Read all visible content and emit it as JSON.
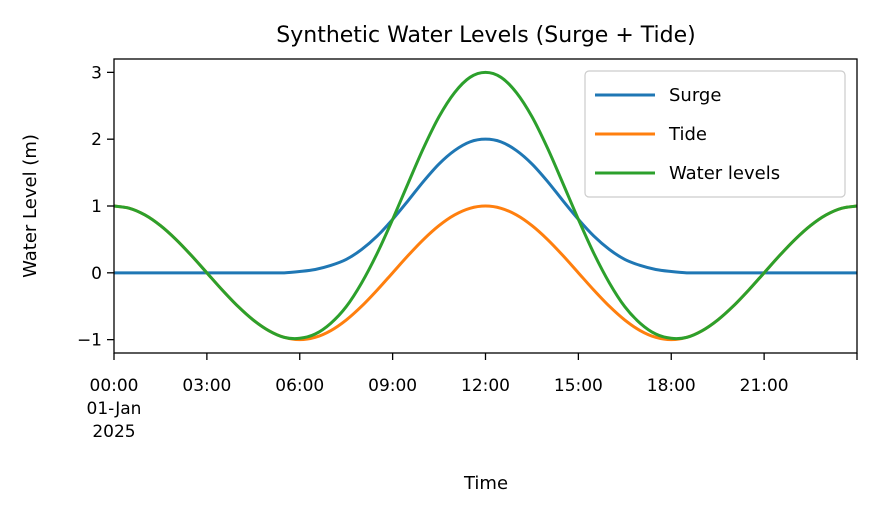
{
  "chart_data": {
    "type": "line",
    "title": "Synthetic Water Levels (Surge + Tide)",
    "xlabel": "Time",
    "ylabel": "Water Level (m)",
    "x_unit": "hours",
    "xlim": [
      0,
      24
    ],
    "ylim": [
      -1.2,
      3.2
    ],
    "x_ticks": [
      {
        "x": 0,
        "lines": [
          "00:00",
          "01-Jan",
          "2025"
        ]
      },
      {
        "x": 3,
        "lines": [
          "03:00"
        ]
      },
      {
        "x": 6,
        "lines": [
          "06:00"
        ]
      },
      {
        "x": 9,
        "lines": [
          "09:00"
        ]
      },
      {
        "x": 12,
        "lines": [
          "12:00"
        ]
      },
      {
        "x": 15,
        "lines": [
          "15:00"
        ]
      },
      {
        "x": 18,
        "lines": [
          "18:00"
        ]
      },
      {
        "x": 21,
        "lines": [
          "21:00"
        ]
      }
    ],
    "y_ticks": [
      {
        "y": 3,
        "label": "3"
      },
      {
        "y": 2,
        "label": "2"
      },
      {
        "y": 1,
        "label": "1"
      },
      {
        "y": 0,
        "label": "0"
      },
      {
        "y": -1,
        "label": "−1"
      }
    ],
    "legend_position": "top-right",
    "grid": false,
    "x": [
      0,
      0.5,
      1,
      1.5,
      2,
      2.5,
      3,
      3.5,
      4,
      4.5,
      5,
      5.5,
      6,
      6.5,
      7,
      7.5,
      8,
      8.5,
      9,
      9.5,
      10,
      10.5,
      11,
      11.5,
      12,
      12.5,
      13,
      13.5,
      14,
      14.5,
      15,
      15.5,
      16,
      16.5,
      17,
      17.5,
      18,
      18.5,
      19,
      19.5,
      20,
      20.5,
      21,
      21.5,
      22,
      22.5,
      23,
      23.5,
      24
    ],
    "series": [
      {
        "name": "Surge",
        "color": "#1f77b4",
        "values": [
          0,
          0,
          0,
          0,
          0,
          0,
          0,
          0,
          0,
          0,
          0,
          0,
          0.02,
          0.05,
          0.11,
          0.2,
          0.35,
          0.55,
          0.8,
          1.08,
          1.37,
          1.63,
          1.83,
          1.96,
          2.0,
          1.96,
          1.83,
          1.63,
          1.37,
          1.08,
          0.8,
          0.55,
          0.35,
          0.2,
          0.11,
          0.05,
          0.02,
          0,
          0,
          0,
          0,
          0,
          0,
          0,
          0,
          0,
          0,
          0,
          0
        ]
      },
      {
        "name": "Tide",
        "color": "#ff7f0e",
        "values": [
          1.0,
          0.966,
          0.866,
          0.707,
          0.5,
          0.259,
          0.0,
          -0.259,
          -0.5,
          -0.707,
          -0.866,
          -0.966,
          -1.0,
          -0.966,
          -0.866,
          -0.707,
          -0.5,
          -0.259,
          0.0,
          0.259,
          0.5,
          0.707,
          0.866,
          0.966,
          1.0,
          0.966,
          0.866,
          0.707,
          0.5,
          0.259,
          0.0,
          -0.259,
          -0.5,
          -0.707,
          -0.866,
          -0.966,
          -1.0,
          -0.966,
          -0.866,
          -0.707,
          -0.5,
          -0.259,
          0.0,
          0.259,
          0.5,
          0.707,
          0.866,
          0.966,
          1.0
        ]
      },
      {
        "name": "Water levels",
        "color": "#2ca02c",
        "values": [
          1.0,
          0.966,
          0.866,
          0.707,
          0.5,
          0.259,
          0.0,
          -0.259,
          -0.5,
          -0.707,
          -0.866,
          -0.966,
          -0.98,
          -0.916,
          -0.756,
          -0.507,
          -0.15,
          0.291,
          0.8,
          1.339,
          1.87,
          2.337,
          2.696,
          2.926,
          3.0,
          2.926,
          2.696,
          2.337,
          1.87,
          1.339,
          0.8,
          0.291,
          -0.15,
          -0.507,
          -0.756,
          -0.916,
          -0.98,
          -0.966,
          -0.866,
          -0.707,
          -0.5,
          -0.259,
          0.0,
          0.259,
          0.5,
          0.707,
          0.866,
          0.966,
          1.0
        ]
      }
    ]
  }
}
